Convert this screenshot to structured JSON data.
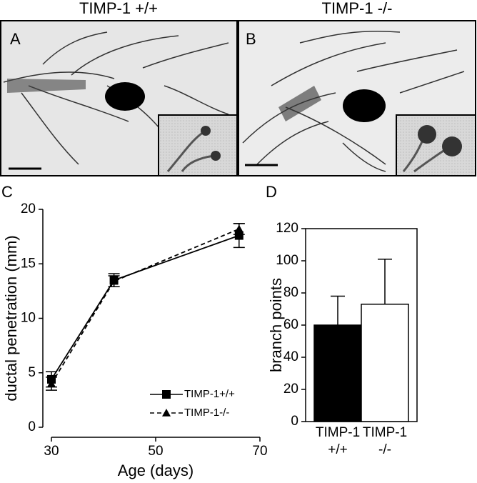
{
  "figure": {
    "headers": [
      "TIMP-1 +/+",
      "TIMP-1 -/-"
    ],
    "panel_labels": [
      "A",
      "B"
    ]
  },
  "chart_data": [
    {
      "type": "line",
      "label": "C",
      "xlabel": "Age (days)",
      "ylabel": "ductal penetration (mm)",
      "xlim": [
        30,
        70
      ],
      "xticks": [
        30,
        50,
        70
      ],
      "ylim": [
        0,
        20
      ],
      "yticks": [
        0,
        5,
        10,
        15,
        20
      ],
      "x": [
        30,
        42,
        66
      ],
      "series": [
        {
          "name": "TIMP-1+/+",
          "color": "#000000",
          "marker": "square",
          "dash": "solid",
          "values": [
            4.4,
            13.5,
            17.6
          ],
          "errors": [
            0.7,
            0.6,
            1.1
          ]
        },
        {
          "name": "TIMP-1-/-",
          "color": "#000000",
          "marker": "triangle",
          "dash": "dashed",
          "values": [
            4.0,
            13.4,
            18.2
          ],
          "errors": [
            0.6,
            0.5,
            0.5
          ]
        }
      ],
      "legend": "lower right"
    },
    {
      "type": "bar",
      "label": "D",
      "ylabel": "branch points",
      "categories": [
        [
          "TIMP-1",
          "+/+"
        ],
        [
          "TIMP-1",
          "-/-"
        ]
      ],
      "values": [
        60,
        73
      ],
      "errors": [
        18,
        28
      ],
      "colors": [
        "#000000",
        "#ffffff"
      ],
      "ylim": [
        0,
        120
      ],
      "yticks": [
        0,
        20,
        40,
        60,
        80,
        100,
        120
      ]
    }
  ]
}
